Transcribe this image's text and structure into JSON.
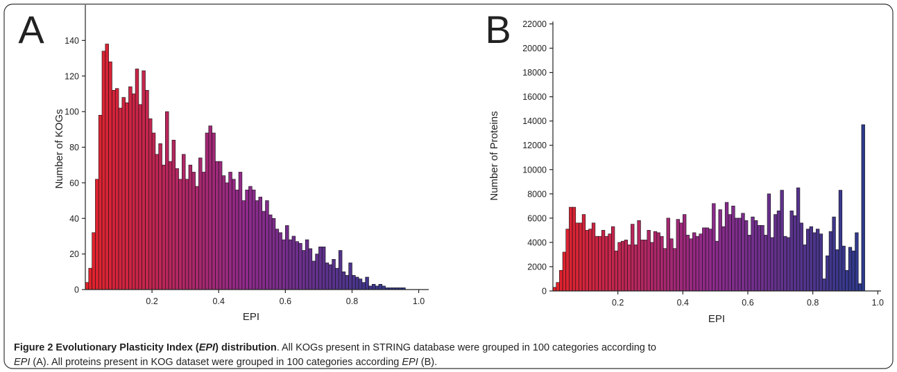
{
  "chart_data": [
    {
      "type": "histogram",
      "panel_label": "A",
      "xlabel": "EPI",
      "ylabel": "Number of KOGs",
      "colors": [
        "#e3232a",
        "#8e2a8a",
        "#2d3a8c"
      ],
      "bins": [
        0,
        0.01,
        0.02,
        0.03,
        0.04,
        0.05,
        0.06,
        0.07,
        0.08,
        0.09,
        0.1,
        0.11,
        0.12,
        0.13,
        0.14,
        0.15,
        0.16,
        0.17,
        0.18,
        0.19,
        0.2,
        0.21,
        0.22,
        0.23,
        0.24,
        0.25,
        0.26,
        0.27,
        0.28,
        0.29,
        0.3,
        0.31,
        0.32,
        0.33,
        0.34,
        0.35,
        0.36,
        0.37,
        0.38,
        0.39,
        0.4,
        0.41,
        0.42,
        0.43,
        0.44,
        0.45,
        0.46,
        0.47,
        0.48,
        0.49,
        0.5,
        0.51,
        0.52,
        0.53,
        0.54,
        0.55,
        0.56,
        0.57,
        0.58,
        0.59,
        0.6,
        0.61,
        0.62,
        0.63,
        0.64,
        0.65,
        0.66,
        0.67,
        0.68,
        0.69,
        0.7,
        0.71,
        0.72,
        0.73,
        0.74,
        0.75,
        0.76,
        0.77,
        0.78,
        0.79,
        0.8,
        0.81,
        0.82,
        0.83,
        0.84,
        0.85,
        0.86,
        0.87,
        0.88,
        0.89,
        0.9,
        0.91,
        0.92,
        0.93,
        0.94,
        0.95,
        0.96
      ],
      "values": [
        4,
        12,
        32,
        62,
        98,
        134,
        138,
        128,
        112,
        113,
        102,
        108,
        105,
        114,
        110,
        124,
        104,
        123,
        112,
        96,
        88,
        76,
        82,
        70,
        100,
        72,
        84,
        68,
        62,
        76,
        62,
        70,
        66,
        58,
        74,
        66,
        88,
        92,
        88,
        72,
        72,
        64,
        60,
        66,
        62,
        56,
        66,
        50,
        56,
        58,
        56,
        50,
        52,
        44,
        50,
        42,
        40,
        34,
        32,
        28,
        36,
        28,
        30,
        27,
        26,
        22,
        28,
        23,
        16,
        20,
        24,
        24,
        15,
        14,
        17,
        12,
        22,
        10,
        8,
        15,
        8,
        7,
        6,
        4,
        7,
        2,
        3,
        2,
        3,
        2,
        1,
        1,
        1,
        1,
        1,
        1
      ],
      "xlim": [
        0,
        1.03
      ],
      "ylim": [
        0,
        160
      ],
      "xticks": [
        0.2,
        0.4,
        0.6,
        0.8,
        {
          "value": 1,
          "label": "1.0"
        }
      ],
      "yticks": [
        0,
        20,
        40,
        60,
        80,
        100,
        120,
        140
      ]
    },
    {
      "type": "histogram",
      "panel_label": "B",
      "xlabel": "EPI",
      "ylabel": "Number of Proteins",
      "colors": [
        "#e3232a",
        "#8e2a8a",
        "#2d3a8c"
      ],
      "bins": [
        0,
        0.01,
        0.02,
        0.03,
        0.04,
        0.05,
        0.06,
        0.07,
        0.08,
        0.09,
        0.1,
        0.11,
        0.12,
        0.13,
        0.14,
        0.15,
        0.16,
        0.17,
        0.18,
        0.19,
        0.2,
        0.21,
        0.22,
        0.23,
        0.24,
        0.25,
        0.26,
        0.27,
        0.28,
        0.29,
        0.3,
        0.31,
        0.32,
        0.33,
        0.34,
        0.35,
        0.36,
        0.37,
        0.38,
        0.39,
        0.4,
        0.41,
        0.42,
        0.43,
        0.44,
        0.45,
        0.46,
        0.47,
        0.48,
        0.49,
        0.5,
        0.51,
        0.52,
        0.53,
        0.54,
        0.55,
        0.56,
        0.57,
        0.58,
        0.59,
        0.6,
        0.61,
        0.62,
        0.63,
        0.64,
        0.65,
        0.66,
        0.67,
        0.68,
        0.69,
        0.7,
        0.71,
        0.72,
        0.73,
        0.74,
        0.75,
        0.76,
        0.77,
        0.78,
        0.79,
        0.8,
        0.81,
        0.82,
        0.83,
        0.84,
        0.85,
        0.86,
        0.87,
        0.88,
        0.89,
        0.9,
        0.91,
        0.92,
        0.93,
        0.94,
        0.95,
        0.96
      ],
      "values": [
        300,
        700,
        1700,
        3200,
        5100,
        6900,
        6900,
        5600,
        5600,
        6300,
        5000,
        5100,
        5600,
        4500,
        4500,
        5000,
        4500,
        4700,
        5300,
        3300,
        4000,
        4100,
        4200,
        3800,
        5500,
        3800,
        5800,
        4200,
        4200,
        5000,
        4000,
        4900,
        4800,
        4500,
        3500,
        6000,
        4300,
        3500,
        5900,
        5600,
        6300,
        4600,
        4300,
        4800,
        4500,
        4700,
        5200,
        5200,
        5100,
        7200,
        4100,
        6700,
        5300,
        7300,
        6300,
        7000,
        6000,
        6000,
        6400,
        5800,
        4600,
        6100,
        5800,
        5400,
        5400,
        4600,
        8000,
        4400,
        6300,
        6600,
        8300,
        4500,
        4400,
        6600,
        6200,
        8500,
        5600,
        3800,
        5100,
        5300,
        4800,
        5100,
        4700,
        1000,
        2900,
        4900,
        6100,
        3400,
        8300,
        3700,
        1700,
        3600,
        3300,
        4800,
        600,
        13700
      ],
      "xlim": [
        0,
        1.01
      ],
      "ylim": [
        0,
        22200
      ],
      "xticks": [
        0.2,
        0.4,
        0.6,
        0.8,
        {
          "value": 1,
          "label": "1.0"
        }
      ],
      "yticks": [
        0,
        2000,
        4000,
        6000,
        8000,
        10000,
        12000,
        14000,
        16000,
        18000,
        20000,
        22000
      ]
    }
  ],
  "caption": {
    "lines": [
      [
        {
          "text": "Figure 2 Evolutionary Plasticity Index (",
          "style": "bold"
        },
        {
          "text": "EPI",
          "style": "bold-italic"
        },
        {
          "text": ") distribution",
          "style": "bold"
        },
        {
          "text": ". All KOGs present in STRING database were grouped in 100 categories according to",
          "style": "normal"
        }
      ],
      [
        {
          "text": "EPI",
          "style": "italic"
        },
        {
          "text": " (A). All proteins present in KOG dataset were grouped in 100 categories according ",
          "style": "normal"
        },
        {
          "text": "EPI",
          "style": "italic"
        },
        {
          "text": " (B).",
          "style": "normal"
        }
      ]
    ]
  }
}
